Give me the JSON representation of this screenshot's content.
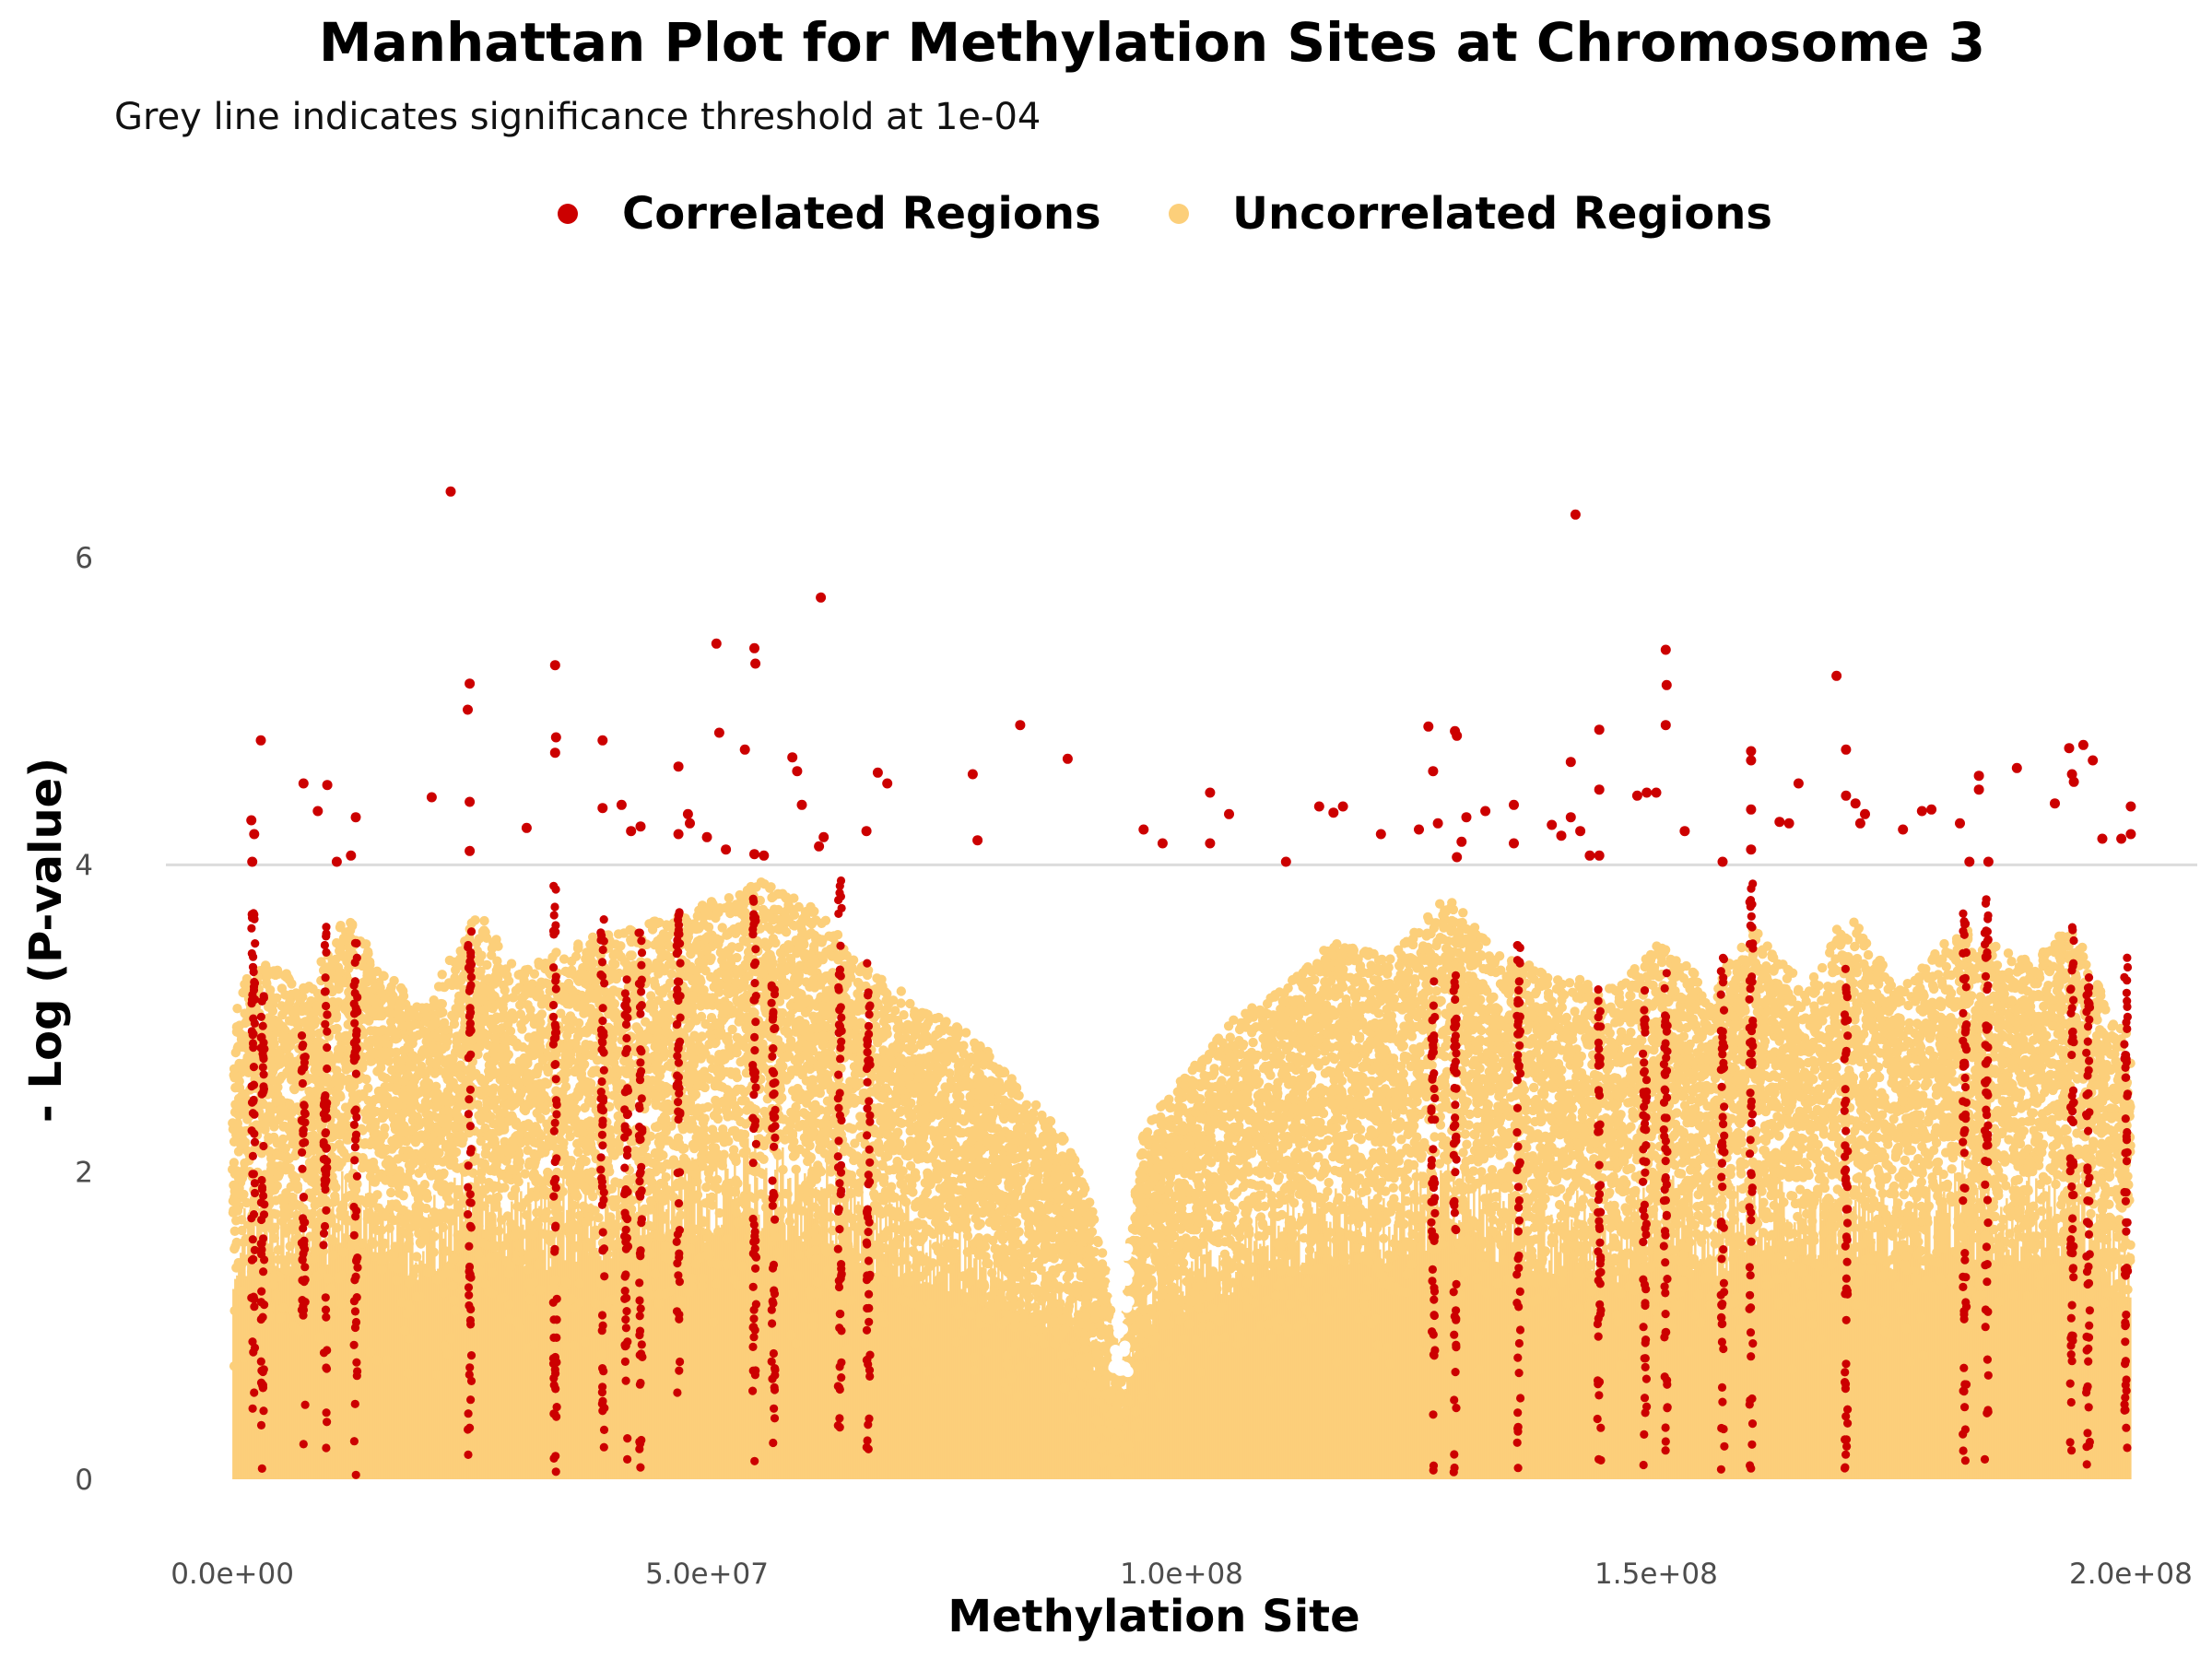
{
  "chart_data": {
    "type": "scatter",
    "title": "Manhattan Plot for Methylation Sites at Chromosome 3",
    "subtitle": "Grey line indicates significance threshold at 1e-04",
    "xlabel": "Methylation Site",
    "ylabel": "- Log (P-value)",
    "xlim": [
      -7000000,
      207000000
    ],
    "ylim": [
      -0.3,
      7.5
    ],
    "x_ticks": [
      {
        "value": 0,
        "label": "0.0e+00"
      },
      {
        "value": 50000000,
        "label": "5.0e+07"
      },
      {
        "value": 100000000,
        "label": "1.0e+08"
      },
      {
        "value": 150000000,
        "label": "1.5e+08"
      },
      {
        "value": 200000000,
        "label": "2.0e+08"
      }
    ],
    "y_ticks": [
      {
        "value": 0,
        "label": "0"
      },
      {
        "value": 2,
        "label": "2"
      },
      {
        "value": 4,
        "label": "4"
      },
      {
        "value": 6,
        "label": "6"
      }
    ],
    "threshold": {
      "value": 4,
      "color": "#dcdcdc"
    },
    "legend_position": "top",
    "grid": false,
    "series": [
      {
        "name": "Correlated Regions",
        "color": "#cc0000",
        "points": [
          [
            23000000,
            6.43
          ],
          [
            141500000,
            6.28
          ],
          [
            62000000,
            5.74
          ],
          [
            51000000,
            5.44
          ],
          [
            55000000,
            5.41
          ],
          [
            55100000,
            5.31
          ],
          [
            34000000,
            5.3
          ],
          [
            151000000,
            5.4
          ],
          [
            151100000,
            5.17
          ],
          [
            169000000,
            5.23
          ],
          [
            25000000,
            5.18
          ],
          [
            24800000,
            5.01
          ],
          [
            34100000,
            4.83
          ],
          [
            34000000,
            4.73
          ],
          [
            3000000,
            4.81
          ],
          [
            39000000,
            4.81
          ],
          [
            83000000,
            4.91
          ],
          [
            88000000,
            4.69
          ],
          [
            51300000,
            4.86
          ],
          [
            54000000,
            4.75
          ],
          [
            59000000,
            4.7
          ],
          [
            59500000,
            4.61
          ],
          [
            47000000,
            4.64
          ],
          [
            68000000,
            4.6
          ],
          [
            69000000,
            4.53
          ],
          [
            78000000,
            4.59
          ],
          [
            103000000,
            4.47
          ],
          [
            105000000,
            4.33
          ],
          [
            126000000,
            4.9
          ],
          [
            126500000,
            4.61
          ],
          [
            128800000,
            4.87
          ],
          [
            129000000,
            4.84
          ],
          [
            144000000,
            4.88
          ],
          [
            141000000,
            4.67
          ],
          [
            144000000,
            4.49
          ],
          [
            151000000,
            4.91
          ],
          [
            148000000,
            4.45
          ],
          [
            149000000,
            4.47
          ],
          [
            150000000,
            4.47
          ],
          [
            160000000,
            4.74
          ],
          [
            160000000,
            4.68
          ],
          [
            165000000,
            4.53
          ],
          [
            170000000,
            4.75
          ],
          [
            170000000,
            4.45
          ],
          [
            171000000,
            4.4
          ],
          [
            184000000,
            4.58
          ],
          [
            184000000,
            4.49
          ],
          [
            188000000,
            4.63
          ],
          [
            193500000,
            4.76
          ],
          [
            195000000,
            4.78
          ],
          [
            193800000,
            4.59
          ],
          [
            196000000,
            4.68
          ],
          [
            194000000,
            4.54
          ],
          [
            192000000,
            4.4
          ],
          [
            200000000,
            4.38
          ],
          [
            197000000,
            4.17
          ],
          [
            199000000,
            4.17
          ],
          [
            200000000,
            4.2
          ],
          [
            182000000,
            4.27
          ],
          [
            183000000,
            4.02
          ],
          [
            185000000,
            4.02
          ],
          [
            178000000,
            4.35
          ],
          [
            179000000,
            4.36
          ],
          [
            176000000,
            4.23
          ],
          [
            172000000,
            4.33
          ],
          [
            171500000,
            4.27
          ],
          [
            163000000,
            4.28
          ],
          [
            164000000,
            4.27
          ],
          [
            157000000,
            4.02
          ],
          [
            160000000,
            4.36
          ],
          [
            160000000,
            4.1
          ],
          [
            153000000,
            4.22
          ],
          [
            144000000,
            4.06
          ],
          [
            143000000,
            4.06
          ],
          [
            141000000,
            4.31
          ],
          [
            142000000,
            4.22
          ],
          [
            140000000,
            4.19
          ],
          [
            139000000,
            4.26
          ],
          [
            135000000,
            4.39
          ],
          [
            135000000,
            4.14
          ],
          [
            132000000,
            4.35
          ],
          [
            130000000,
            4.31
          ],
          [
            129500000,
            4.15
          ],
          [
            129000000,
            4.05
          ],
          [
            127000000,
            4.27
          ],
          [
            125000000,
            4.23
          ],
          [
            121000000,
            4.2
          ],
          [
            117000000,
            4.38
          ],
          [
            116000000,
            4.34
          ],
          [
            114500000,
            4.38
          ],
          [
            111000000,
            4.02
          ],
          [
            96000000,
            4.23
          ],
          [
            98000000,
            4.14
          ],
          [
            103000000,
            4.14
          ],
          [
            78500000,
            4.16
          ],
          [
            66800000,
            4.22
          ],
          [
            62300000,
            4.18
          ],
          [
            61800000,
            4.12
          ],
          [
            60000000,
            4.39
          ],
          [
            56000000,
            4.06
          ],
          [
            55000000,
            4.07
          ],
          [
            52000000,
            4.1
          ],
          [
            50000000,
            4.18
          ],
          [
            48000000,
            4.33
          ],
          [
            48200000,
            4.27
          ],
          [
            47000000,
            4.2
          ],
          [
            43000000,
            4.25
          ],
          [
            42000000,
            4.22
          ],
          [
            41000000,
            4.39
          ],
          [
            39000000,
            4.37
          ],
          [
            31000000,
            4.24
          ],
          [
            25000000,
            4.41
          ],
          [
            25000000,
            4.09
          ],
          [
            21000000,
            4.44
          ],
          [
            13000000,
            4.31
          ],
          [
            10000000,
            4.52
          ],
          [
            9000000,
            4.35
          ],
          [
            7500000,
            4.53
          ],
          [
            11000000,
            4.02
          ],
          [
            12500000,
            4.06
          ],
          [
            2000000,
            4.29
          ],
          [
            2300000,
            4.2
          ],
          [
            2100000,
            4.02
          ]
        ]
      },
      {
        "name": "Uncorrelated Regions",
        "color": "#fccf7a",
        "points": []
      }
    ],
    "correlated_columns": [
      {
        "x": 2200000,
        "top": 3.7
      },
      {
        "x": 3200000,
        "top": 3.2
      },
      {
        "x": 7500000,
        "top": 2.9
      },
      {
        "x": 9800000,
        "top": 3.6
      },
      {
        "x": 13000000,
        "top": 3.5
      },
      {
        "x": 25000000,
        "top": 3.7
      },
      {
        "x": 34000000,
        "top": 3.9
      },
      {
        "x": 39000000,
        "top": 3.7
      },
      {
        "x": 41500000,
        "top": 3.3
      },
      {
        "x": 43000000,
        "top": 3.6
      },
      {
        "x": 47000000,
        "top": 3.7
      },
      {
        "x": 55000000,
        "top": 3.8
      },
      {
        "x": 57000000,
        "top": 3.3
      },
      {
        "x": 64000000,
        "top": 3.9
      },
      {
        "x": 67000000,
        "top": 3.5
      },
      {
        "x": 126500000,
        "top": 3.3
      },
      {
        "x": 128800000,
        "top": 3.4
      },
      {
        "x": 135500000,
        "top": 3.5
      },
      {
        "x": 144000000,
        "top": 3.2
      },
      {
        "x": 148800000,
        "top": 3.2
      },
      {
        "x": 151000000,
        "top": 3.3
      },
      {
        "x": 157000000,
        "top": 3.4
      },
      {
        "x": 160000000,
        "top": 3.9
      },
      {
        "x": 170000000,
        "top": 3.4
      },
      {
        "x": 182500000,
        "top": 3.7
      },
      {
        "x": 184800000,
        "top": 3.8
      },
      {
        "x": 193800000,
        "top": 3.6
      },
      {
        "x": 195500000,
        "top": 3.3
      },
      {
        "x": 199500000,
        "top": 3.4
      }
    ]
  }
}
